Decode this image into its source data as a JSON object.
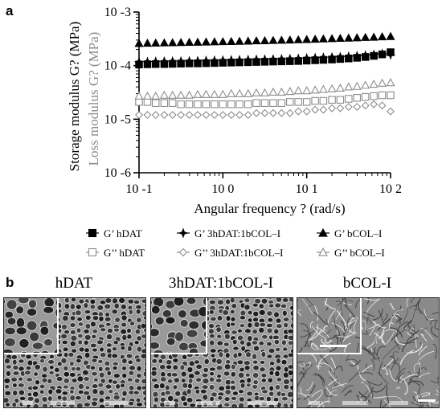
{
  "panel_a_letter": "a",
  "panel_b_letter": "b",
  "chart_data": {
    "type": "scatter",
    "xscale": "log",
    "yscale": "log",
    "xlim": [
      0.1,
      100
    ],
    "ylim": [
      1e-06,
      0.001
    ],
    "xlabel": "Angular frequency ?  (rad/s)",
    "ylabel_primary": "Storage modulus G? (MPa)",
    "ylabel_secondary": "Loss modulus G? (MPa)",
    "x_tick_labels": [
      "10 -1",
      "10 0",
      "10 1",
      "10 2"
    ],
    "y_tick_labels": [
      "10 -6",
      "10 -5",
      "10 -4",
      "10 -3"
    ],
    "grid": false,
    "legend_position": "bottom",
    "colors": {
      "storage": "#000000",
      "loss": "#8c8c8c"
    },
    "series": [
      {
        "name": "G’ hDAT",
        "marker": "square-filled",
        "color": "#000000",
        "x": [
          0.1,
          0.126,
          0.158,
          0.2,
          0.251,
          0.316,
          0.398,
          0.501,
          0.631,
          0.794,
          1,
          1.26,
          1.58,
          2,
          2.51,
          3.16,
          3.98,
          5.01,
          6.31,
          7.94,
          10,
          12.6,
          15.8,
          20,
          25.1,
          31.6,
          39.8,
          50.1,
          63.1,
          79.4,
          100
        ],
        "y": [
          0.000105,
          0.000106,
          0.000107,
          0.000107,
          0.000108,
          0.000109,
          0.00011,
          0.00011,
          0.000111,
          0.000112,
          0.000113,
          0.000114,
          0.000115,
          0.000116,
          0.000117,
          0.000118,
          0.000119,
          0.00012,
          0.000121,
          0.000122,
          0.000124,
          0.000126,
          0.000128,
          0.00013,
          0.000133,
          0.000136,
          0.00014,
          0.000145,
          0.000152,
          0.000162,
          0.000178
        ]
      },
      {
        "name": "G’ 3hDAT:1bCOL–I",
        "marker": "star-filled",
        "color": "#000000",
        "x": [
          0.1,
          0.126,
          0.158,
          0.2,
          0.251,
          0.316,
          0.398,
          0.501,
          0.631,
          0.794,
          1,
          1.26,
          1.58,
          2,
          2.51,
          3.16,
          3.98,
          5.01,
          6.31,
          7.94,
          10,
          12.6,
          15.8,
          20,
          25.1,
          31.6,
          39.8,
          50.1,
          63.1,
          79.4,
          100
        ],
        "y": [
          0.000118,
          0.000119,
          0.00012,
          0.000121,
          0.000122,
          0.000122,
          0.000123,
          0.000124,
          0.000125,
          0.000126,
          0.000127,
          0.000128,
          0.000129,
          0.00013,
          0.000131,
          0.000132,
          0.000133,
          0.000134,
          0.000135,
          0.000137,
          0.000139,
          0.000141,
          0.000143,
          0.000145,
          0.000147,
          0.00015,
          0.000153,
          0.000157,
          0.000162,
          0.000168,
          0.000158
        ]
      },
      {
        "name": "G’ bCOL–I",
        "marker": "triangle-filled",
        "color": "#000000",
        "x": [
          0.1,
          0.126,
          0.158,
          0.2,
          0.251,
          0.316,
          0.398,
          0.501,
          0.631,
          0.794,
          1,
          1.26,
          1.58,
          2,
          2.51,
          3.16,
          3.98,
          5.01,
          6.31,
          7.94,
          10,
          12.6,
          15.8,
          20,
          25.1,
          31.6,
          39.8,
          50.1,
          63.1,
          79.4,
          100
        ],
        "y": [
          0.00026,
          0.000262,
          0.000264,
          0.000266,
          0.000268,
          0.00027,
          0.000272,
          0.000274,
          0.000276,
          0.000278,
          0.00028,
          0.000282,
          0.000284,
          0.000287,
          0.00029,
          0.000292,
          0.000295,
          0.000298,
          0.000301,
          0.000304,
          0.000307,
          0.000311,
          0.000315,
          0.000319,
          0.000323,
          0.000327,
          0.000331,
          0.000336,
          0.00034,
          0.000345,
          0.00035
        ]
      },
      {
        "name": "G’’ hDAT",
        "marker": "square-open",
        "color": "#8c8c8c",
        "x": [
          0.1,
          0.126,
          0.158,
          0.2,
          0.251,
          0.316,
          0.398,
          0.501,
          0.631,
          0.794,
          1,
          1.26,
          1.58,
          2,
          2.51,
          3.16,
          3.98,
          5.01,
          6.31,
          7.94,
          10,
          12.6,
          15.8,
          20,
          25.1,
          31.6,
          39.8,
          50.1,
          63.1,
          79.4,
          100
        ],
        "y": [
          2.1e-05,
          2.1e-05,
          2e-05,
          2e-05,
          2e-05,
          1.9e-05,
          1.9e-05,
          1.9e-05,
          1.9e-05,
          1.9e-05,
          1.9e-05,
          1.9e-05,
          1.9e-05,
          1.9e-05,
          2e-05,
          2e-05,
          2e-05,
          2e-05,
          2.1e-05,
          2.1e-05,
          2.1e-05,
          2.2e-05,
          2.2e-05,
          2.3e-05,
          2.3e-05,
          2.4e-05,
          2.5e-05,
          2.6e-05,
          2.7e-05,
          2.8e-05,
          2.8e-05
        ]
      },
      {
        "name": "G’’ 3hDAT:1bCOL–I",
        "marker": "diamond-open",
        "color": "#8c8c8c",
        "x": [
          0.1,
          0.126,
          0.158,
          0.2,
          0.251,
          0.316,
          0.398,
          0.501,
          0.631,
          0.794,
          1,
          1.26,
          1.58,
          2,
          2.51,
          3.16,
          3.98,
          5.01,
          6.31,
          7.94,
          10,
          12.6,
          15.8,
          20,
          25.1,
          31.6,
          39.8,
          50.1,
          63.1,
          79.4,
          100
        ],
        "y": [
          1.2e-05,
          1.2e-05,
          1.2e-05,
          1.2e-05,
          1.2e-05,
          1.2e-05,
          1.2e-05,
          1.2e-05,
          1.2e-05,
          1.2e-05,
          1.2e-05,
          1.2e-05,
          1.2e-05,
          1.2e-05,
          1.3e-05,
          1.3e-05,
          1.3e-05,
          1.3e-05,
          1.3e-05,
          1.4e-05,
          1.4e-05,
          1.5e-05,
          1.5e-05,
          1.6e-05,
          1.6e-05,
          1.7e-05,
          1.7e-05,
          1.8e-05,
          1.9e-05,
          1.8e-05,
          1.4e-05
        ]
      },
      {
        "name": "G’’ bCOL–I",
        "marker": "triangle-open",
        "color": "#8c8c8c",
        "x": [
          0.1,
          0.126,
          0.158,
          0.2,
          0.251,
          0.316,
          0.398,
          0.501,
          0.631,
          0.794,
          1,
          1.26,
          1.58,
          2,
          2.51,
          3.16,
          3.98,
          5.01,
          6.31,
          7.94,
          10,
          12.6,
          15.8,
          20,
          25.1,
          31.6,
          39.8,
          50.1,
          63.1,
          79.4,
          100
        ],
        "y": [
          2.7e-05,
          2.7e-05,
          2.7e-05,
          2.8e-05,
          2.8e-05,
          2.8e-05,
          2.8e-05,
          2.9e-05,
          2.9e-05,
          2.9e-05,
          2.9e-05,
          3e-05,
          3e-05,
          3e-05,
          3.1e-05,
          3.1e-05,
          3.2e-05,
          3.2e-05,
          3.3e-05,
          3.4e-05,
          3.4e-05,
          3.5e-05,
          3.6e-05,
          3.7e-05,
          3.8e-05,
          4e-05,
          4.1e-05,
          4.3e-05,
          4.5e-05,
          4.7e-05,
          4.8e-05
        ]
      }
    ]
  },
  "legend": {
    "row1": [
      "G’ hDAT",
      "G’ 3hDAT:1bCOL–I",
      "G’ bCOL–I"
    ],
    "row2": [
      "G’’ hDAT",
      "G’’ 3hDAT:1bCOL–I",
      "G’’ bCOL–I"
    ]
  },
  "sem_images": [
    {
      "label": "hDAT",
      "pattern": "large-pores"
    },
    {
      "label": "3hDAT:1bCOL-I",
      "pattern": "large-pores"
    },
    {
      "label": "bCOL-I",
      "pattern": "fine-fibrous"
    }
  ]
}
